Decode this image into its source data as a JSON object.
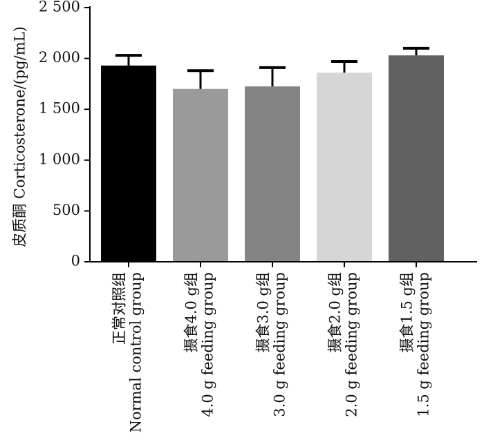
{
  "chart_data": {
    "type": "bar",
    "ylabel": "皮质酮  Corticosterone/(pg/mL)",
    "ylim": [
      0,
      2500
    ],
    "yticks": [
      0,
      500,
      1000,
      1500,
      2000,
      2500
    ],
    "ytick_labels": [
      "0",
      "500",
      "1 000",
      "1 500",
      "2 000",
      "2 500"
    ],
    "categories": [
      {
        "line1": "正常对照组",
        "line2": "Normal control group"
      },
      {
        "line1": "摄食4.0 g组",
        "line2": "4.0 g feeding group"
      },
      {
        "line1": "摄食3.0 g组",
        "line2": "3.0 g feeding group"
      },
      {
        "line1": "摄食2.0 g组",
        "line2": "2.0 g feeding group"
      },
      {
        "line1": "摄食1.5 g组",
        "line2": "1.5 g feeding group"
      }
    ],
    "values": [
      1930,
      1700,
      1725,
      1860,
      2030
    ],
    "error_upper": [
      2030,
      1880,
      1910,
      1970,
      2100
    ],
    "bar_colors": [
      "#000000",
      "#9a9a9a",
      "#848484",
      "#d6d6d6",
      "#616161"
    ],
    "grid": false,
    "legend": "none"
  }
}
